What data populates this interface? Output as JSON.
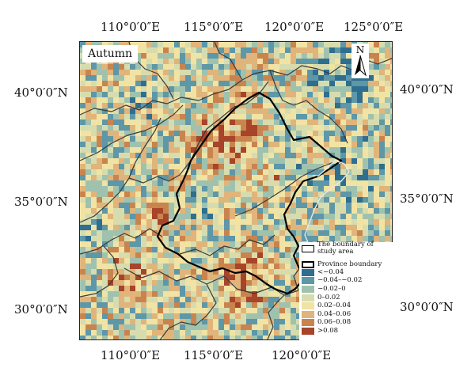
{
  "map": {
    "season_label": "Autumn",
    "north_label": "N",
    "top_labels": [
      "110°0′0″E",
      "115°0′0″E",
      "120°0′0″E",
      "125°0′0″E"
    ],
    "bottom_labels": [
      "110°0′0″E",
      "115°0′0″E",
      "120°0′0″E"
    ],
    "left_labels": [
      "40°0′0″N",
      "35°0′0″N",
      "30°0′0″N"
    ],
    "right_labels": [
      "40°0′0″N",
      "35°0′0″N",
      "30°0′0″N"
    ]
  },
  "legend": {
    "boundary_label": "The boundary of study area",
    "province_label": "Province boundary",
    "classes": [
      {
        "label": "<−0.04",
        "color": "#2f6e8f"
      },
      {
        "label": "−0.04–−0.02",
        "color": "#5d97a8"
      },
      {
        "label": "−0.02–0",
        "color": "#9fc2ae"
      },
      {
        "label": "0–0.02",
        "color": "#d7dcae"
      },
      {
        "label": "0.02–0.04",
        "color": "#f1e3a4"
      },
      {
        "label": "0.04–0.06",
        "color": "#e0b47a"
      },
      {
        "label": "0.06–0.08",
        "color": "#c9844e"
      },
      {
        "label": ">0.08",
        "color": "#a8442a"
      }
    ]
  }
}
